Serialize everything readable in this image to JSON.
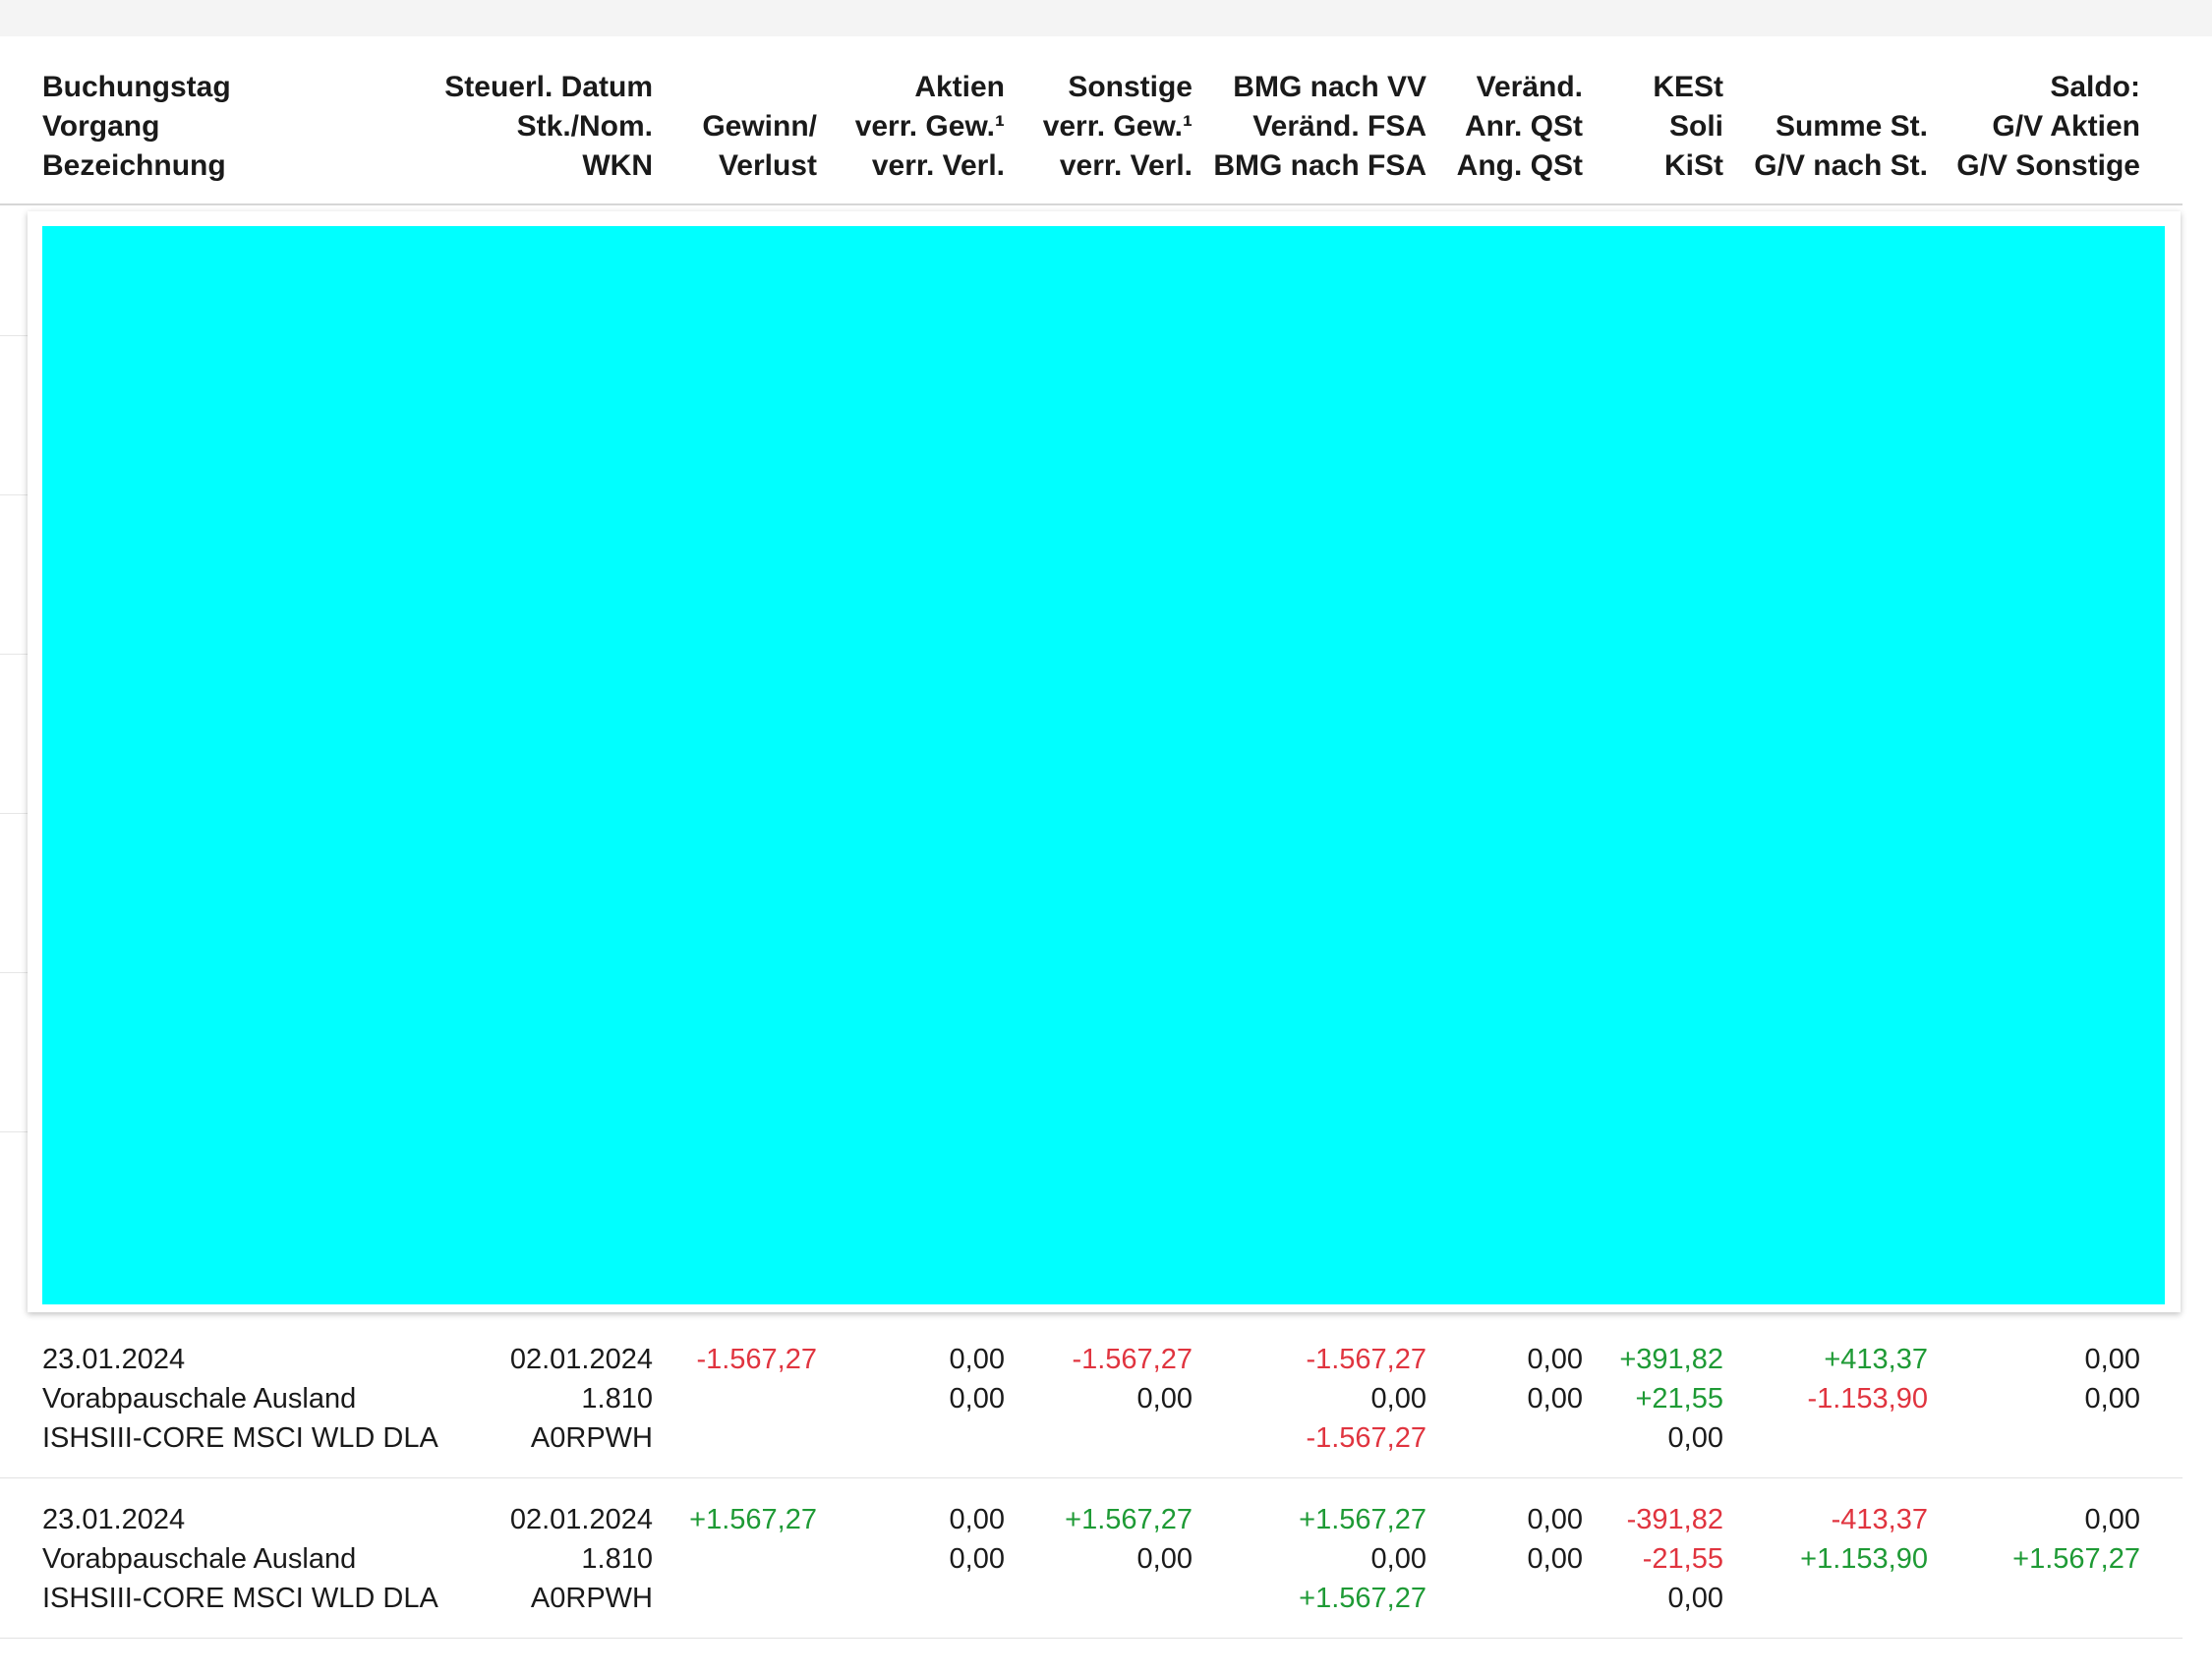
{
  "header": {
    "col1": [
      "Buchungstag",
      "Vorgang",
      "Bezeichnung"
    ],
    "col2": [
      "Steuerl. Datum",
      "Stk./Nom.",
      "WKN"
    ],
    "col3": [
      "",
      "Gewinn/",
      "Verlust"
    ],
    "col4": [
      "Aktien",
      "verr. Gew.¹",
      "verr. Verl."
    ],
    "col5": [
      "Sonstige",
      "verr. Gew.¹",
      "verr. Verl."
    ],
    "col6": [
      "BMG nach VV",
      "Veränd. FSA",
      "BMG nach FSA"
    ],
    "col7": [
      "Veränd.",
      "Anr. QSt",
      "Ang. QSt"
    ],
    "col8": [
      "KESt",
      "Soli",
      "KiSt"
    ],
    "col9": [
      "",
      "Summe St.",
      "G/V nach St."
    ],
    "col10": [
      "Saldo:",
      "G/V Aktien",
      "G/V Sonstige"
    ]
  },
  "colors": {
    "negative": "#e0343f",
    "positive": "#1e9a35",
    "overlay": "#00ffff"
  },
  "rows": [
    {
      "col1": [
        "23.01.2024",
        "Vorabpauschale Ausland",
        "ISHSIII-CORE MSCI WLD DLA"
      ],
      "col2": [
        "02.01.2024",
        "1.810",
        "A0RPWH"
      ],
      "col3": [
        "-1.567,27",
        "",
        ""
      ],
      "col4": [
        "0,00",
        "0,00",
        ""
      ],
      "col5": [
        "-1.567,27",
        "0,00",
        ""
      ],
      "col6": [
        "-1.567,27",
        "0,00",
        "-1.567,27"
      ],
      "col7": [
        "0,00",
        "0,00",
        ""
      ],
      "col8": [
        "+391,82",
        "+21,55",
        "0,00"
      ],
      "col9": [
        "+413,37",
        "-1.153,90",
        ""
      ],
      "col10": [
        "0,00",
        "0,00",
        ""
      ]
    },
    {
      "col1": [
        "23.01.2024",
        "Vorabpauschale Ausland",
        "ISHSIII-CORE MSCI WLD DLA"
      ],
      "col2": [
        "02.01.2024",
        "1.810",
        "A0RPWH"
      ],
      "col3": [
        "+1.567,27",
        "",
        ""
      ],
      "col4": [
        "0,00",
        "0,00",
        ""
      ],
      "col5": [
        "+1.567,27",
        "0,00",
        ""
      ],
      "col6": [
        "+1.567,27",
        "0,00",
        "+1.567,27"
      ],
      "col7": [
        "0,00",
        "0,00",
        ""
      ],
      "col8": [
        "-391,82",
        "-21,55",
        "0,00"
      ],
      "col9": [
        "-413,37",
        "+1.153,90",
        ""
      ],
      "col10": [
        "0,00",
        "+1.567,27",
        ""
      ]
    }
  ]
}
